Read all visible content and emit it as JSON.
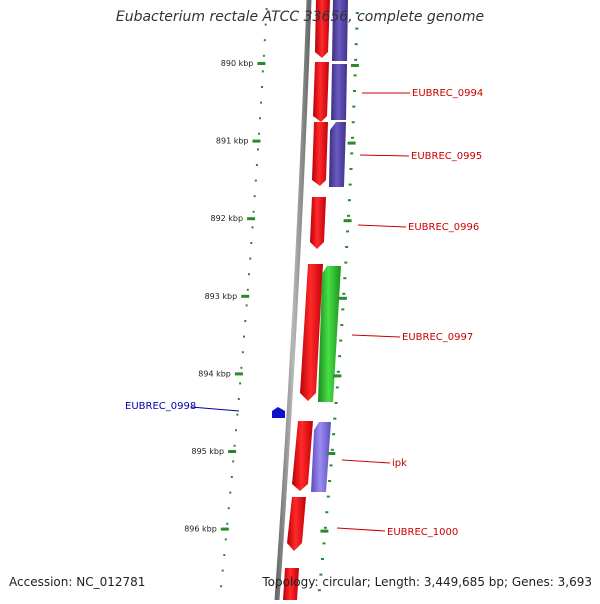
{
  "title": "Eubacterium rectale ATCC 33656, complete genome",
  "footer": {
    "accession": "Accession: NC_012781",
    "summary": "Topology: circular; Length: 3,449,685 bp; Genes: 3,693"
  },
  "colors": {
    "ruler": "#2a8a2a",
    "backbone": "#808080",
    "gene_forward": "#e8000b",
    "gene_reverse_purple": "#5a4aa8",
    "gene_reverse_lilac": "#7b68d0",
    "gene_green": "#28b828",
    "gene_blue": "#1010cc",
    "label_red": "#cc0000",
    "label_blue": "#0000aa"
  },
  "ruler_ticks": [
    {
      "label": "890 kbp",
      "kbp": 890
    },
    {
      "label": "891 kbp",
      "kbp": 891
    },
    {
      "label": "892 kbp",
      "kbp": 892
    },
    {
      "label": "893 kbp",
      "kbp": 893
    },
    {
      "label": "894 kbp",
      "kbp": 894
    },
    {
      "label": "895 kbp",
      "kbp": 895
    },
    {
      "label": "896 kbp",
      "kbp": 896
    }
  ],
  "gene_labels": [
    {
      "name": "EUBREC_0994",
      "color": "red"
    },
    {
      "name": "EUBREC_0995",
      "color": "red"
    },
    {
      "name": "EUBREC_0996",
      "color": "red"
    },
    {
      "name": "EUBREC_0997",
      "color": "red"
    },
    {
      "name": "EUBREC_0998",
      "color": "blue"
    },
    {
      "name": "ipk",
      "color": "red"
    },
    {
      "name": "EUBREC_1000",
      "color": "red"
    }
  ]
}
